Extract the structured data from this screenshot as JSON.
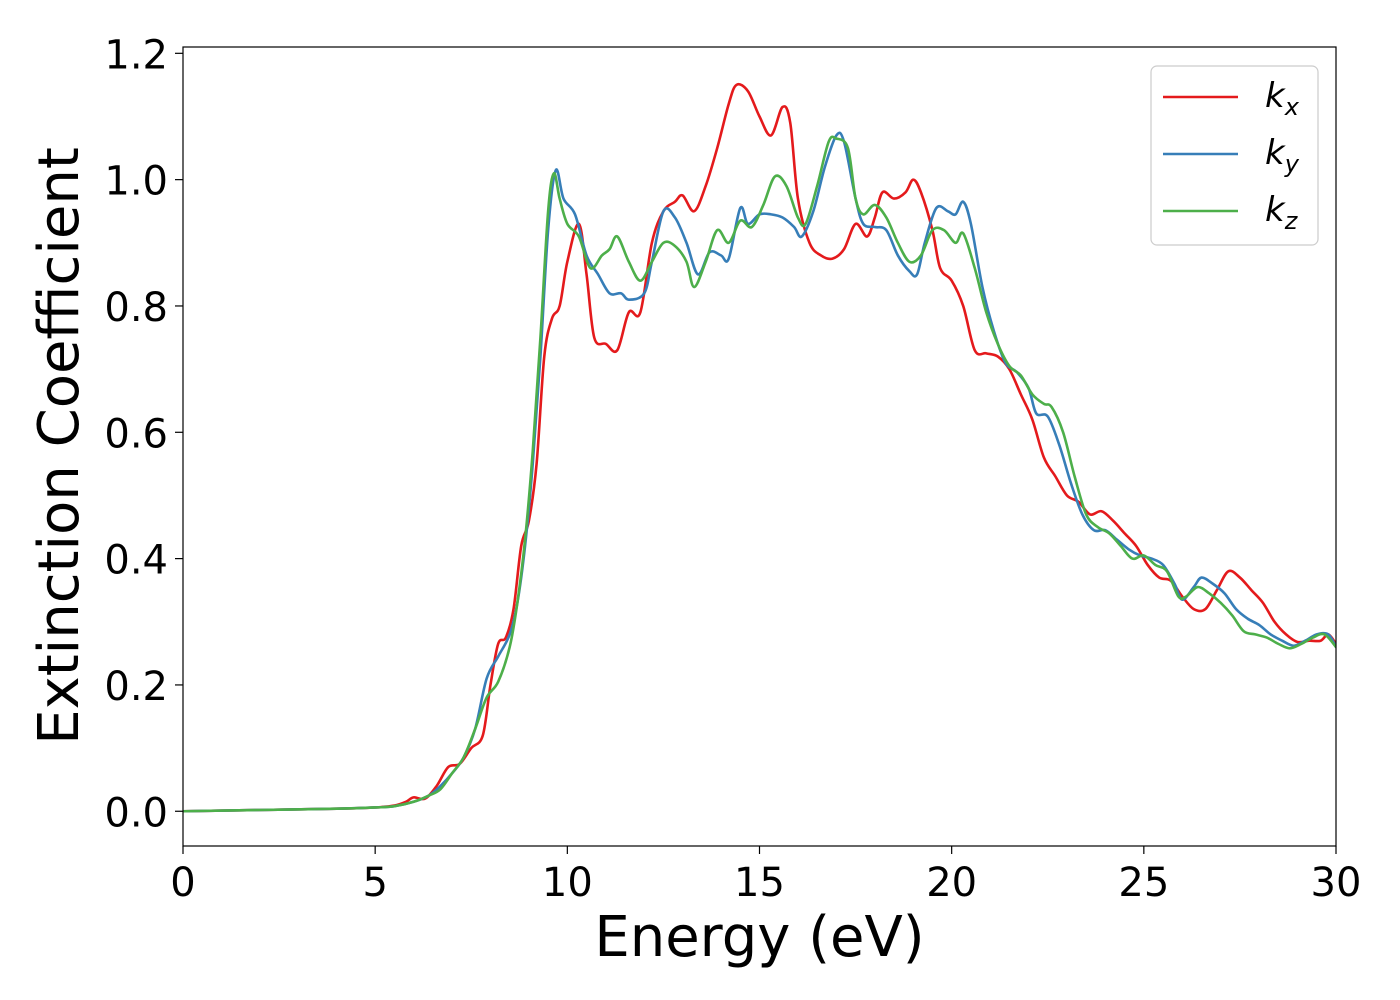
{
  "chart_data": {
    "type": "line",
    "title": "",
    "xlabel": "Energy (eV)",
    "ylabel": "Extinction Coefficient",
    "xlim": [
      0,
      30
    ],
    "ylim": [
      -0.055,
      1.21
    ],
    "xticks": [
      0,
      5,
      10,
      15,
      20,
      25,
      30
    ],
    "xtick_labels": [
      "0",
      "5",
      "10",
      "15",
      "20",
      "25",
      "30"
    ],
    "yticks": [
      0.0,
      0.2,
      0.4,
      0.6,
      0.8,
      1.0,
      1.2
    ],
    "ytick_labels": [
      "0.0",
      "0.2",
      "0.4",
      "0.6",
      "0.8",
      "1.0",
      "1.2"
    ],
    "grid": false,
    "legend_position": "top-right",
    "series": [
      {
        "name": "k_x",
        "legend_base": "k",
        "legend_sub": "x",
        "color": "#e41a1c",
        "points": [
          [
            0,
            0.0
          ],
          [
            2,
            0.002
          ],
          [
            4,
            0.004
          ],
          [
            5,
            0.006
          ],
          [
            5.5,
            0.009
          ],
          [
            5.8,
            0.015
          ],
          [
            6.0,
            0.022
          ],
          [
            6.3,
            0.02
          ],
          [
            6.6,
            0.04
          ],
          [
            6.9,
            0.07
          ],
          [
            7.2,
            0.075
          ],
          [
            7.5,
            0.1
          ],
          [
            7.8,
            0.12
          ],
          [
            8.0,
            0.2
          ],
          [
            8.2,
            0.265
          ],
          [
            8.4,
            0.275
          ],
          [
            8.6,
            0.32
          ],
          [
            8.8,
            0.42
          ],
          [
            9.0,
            0.46
          ],
          [
            9.2,
            0.55
          ],
          [
            9.4,
            0.72
          ],
          [
            9.6,
            0.78
          ],
          [
            9.8,
            0.8
          ],
          [
            10.0,
            0.87
          ],
          [
            10.3,
            0.93
          ],
          [
            10.5,
            0.85
          ],
          [
            10.7,
            0.75
          ],
          [
            11.0,
            0.74
          ],
          [
            11.3,
            0.73
          ],
          [
            11.6,
            0.79
          ],
          [
            11.9,
            0.79
          ],
          [
            12.2,
            0.9
          ],
          [
            12.5,
            0.95
          ],
          [
            12.8,
            0.965
          ],
          [
            13.0,
            0.975
          ],
          [
            13.3,
            0.95
          ],
          [
            13.6,
            0.99
          ],
          [
            13.9,
            1.05
          ],
          [
            14.2,
            1.12
          ],
          [
            14.4,
            1.15
          ],
          [
            14.7,
            1.14
          ],
          [
            15.0,
            1.1
          ],
          [
            15.3,
            1.07
          ],
          [
            15.6,
            1.115
          ],
          [
            15.8,
            1.09
          ],
          [
            16.0,
            0.97
          ],
          [
            16.3,
            0.9
          ],
          [
            16.6,
            0.88
          ],
          [
            16.9,
            0.875
          ],
          [
            17.2,
            0.89
          ],
          [
            17.5,
            0.93
          ],
          [
            17.8,
            0.91
          ],
          [
            18.0,
            0.94
          ],
          [
            18.2,
            0.98
          ],
          [
            18.5,
            0.97
          ],
          [
            18.8,
            0.98
          ],
          [
            19.0,
            1.0
          ],
          [
            19.2,
            0.98
          ],
          [
            19.5,
            0.92
          ],
          [
            19.7,
            0.86
          ],
          [
            20.0,
            0.84
          ],
          [
            20.3,
            0.8
          ],
          [
            20.6,
            0.73
          ],
          [
            20.9,
            0.725
          ],
          [
            21.2,
            0.72
          ],
          [
            21.5,
            0.7
          ],
          [
            21.8,
            0.66
          ],
          [
            22.1,
            0.62
          ],
          [
            22.4,
            0.56
          ],
          [
            22.7,
            0.53
          ],
          [
            23.0,
            0.5
          ],
          [
            23.3,
            0.49
          ],
          [
            23.6,
            0.47
          ],
          [
            23.9,
            0.475
          ],
          [
            24.2,
            0.46
          ],
          [
            24.5,
            0.44
          ],
          [
            24.8,
            0.42
          ],
          [
            25.1,
            0.39
          ],
          [
            25.4,
            0.37
          ],
          [
            25.7,
            0.365
          ],
          [
            26.0,
            0.34
          ],
          [
            26.3,
            0.32
          ],
          [
            26.6,
            0.32
          ],
          [
            26.9,
            0.35
          ],
          [
            27.2,
            0.38
          ],
          [
            27.5,
            0.37
          ],
          [
            27.8,
            0.35
          ],
          [
            28.1,
            0.33
          ],
          [
            28.4,
            0.3
          ],
          [
            28.7,
            0.28
          ],
          [
            29.0,
            0.268
          ],
          [
            29.3,
            0.27
          ],
          [
            29.6,
            0.27
          ],
          [
            29.8,
            0.28
          ],
          [
            30.0,
            0.265
          ]
        ]
      },
      {
        "name": "k_y",
        "legend_base": "k",
        "legend_sub": "y",
        "color": "#377eb8",
        "points": [
          [
            0,
            0.0
          ],
          [
            2,
            0.002
          ],
          [
            4,
            0.004
          ],
          [
            5,
            0.006
          ],
          [
            5.5,
            0.008
          ],
          [
            6.0,
            0.015
          ],
          [
            6.4,
            0.025
          ],
          [
            6.7,
            0.04
          ],
          [
            7.0,
            0.06
          ],
          [
            7.3,
            0.085
          ],
          [
            7.6,
            0.13
          ],
          [
            7.9,
            0.21
          ],
          [
            8.2,
            0.245
          ],
          [
            8.5,
            0.28
          ],
          [
            8.7,
            0.33
          ],
          [
            8.9,
            0.42
          ],
          [
            9.1,
            0.55
          ],
          [
            9.3,
            0.72
          ],
          [
            9.5,
            0.92
          ],
          [
            9.7,
            1.015
          ],
          [
            9.9,
            0.97
          ],
          [
            10.2,
            0.945
          ],
          [
            10.5,
            0.88
          ],
          [
            10.8,
            0.85
          ],
          [
            11.1,
            0.82
          ],
          [
            11.4,
            0.82
          ],
          [
            11.6,
            0.81
          ],
          [
            12.0,
            0.82
          ],
          [
            12.2,
            0.87
          ],
          [
            12.5,
            0.95
          ],
          [
            12.8,
            0.94
          ],
          [
            13.1,
            0.9
          ],
          [
            13.4,
            0.85
          ],
          [
            13.7,
            0.885
          ],
          [
            14.0,
            0.88
          ],
          [
            14.2,
            0.875
          ],
          [
            14.5,
            0.955
          ],
          [
            14.7,
            0.93
          ],
          [
            15.0,
            0.945
          ],
          [
            15.3,
            0.945
          ],
          [
            15.6,
            0.94
          ],
          [
            15.9,
            0.925
          ],
          [
            16.1,
            0.91
          ],
          [
            16.4,
            0.95
          ],
          [
            16.7,
            1.02
          ],
          [
            17.0,
            1.07
          ],
          [
            17.2,
            1.06
          ],
          [
            17.5,
            0.97
          ],
          [
            17.7,
            0.93
          ],
          [
            18.0,
            0.925
          ],
          [
            18.3,
            0.92
          ],
          [
            18.6,
            0.88
          ],
          [
            18.9,
            0.855
          ],
          [
            19.1,
            0.85
          ],
          [
            19.3,
            0.9
          ],
          [
            19.6,
            0.955
          ],
          [
            19.9,
            0.95
          ],
          [
            20.1,
            0.945
          ],
          [
            20.3,
            0.965
          ],
          [
            20.5,
            0.93
          ],
          [
            20.8,
            0.83
          ],
          [
            21.1,
            0.76
          ],
          [
            21.4,
            0.71
          ],
          [
            21.7,
            0.695
          ],
          [
            22.0,
            0.67
          ],
          [
            22.2,
            0.63
          ],
          [
            22.5,
            0.625
          ],
          [
            22.8,
            0.58
          ],
          [
            23.1,
            0.52
          ],
          [
            23.4,
            0.47
          ],
          [
            23.7,
            0.445
          ],
          [
            24.0,
            0.445
          ],
          [
            24.3,
            0.43
          ],
          [
            24.6,
            0.415
          ],
          [
            24.9,
            0.405
          ],
          [
            25.2,
            0.4
          ],
          [
            25.5,
            0.39
          ],
          [
            25.8,
            0.36
          ],
          [
            26.0,
            0.335
          ],
          [
            26.3,
            0.355
          ],
          [
            26.5,
            0.37
          ],
          [
            26.8,
            0.36
          ],
          [
            27.1,
            0.345
          ],
          [
            27.4,
            0.32
          ],
          [
            27.7,
            0.305
          ],
          [
            28.0,
            0.295
          ],
          [
            28.3,
            0.28
          ],
          [
            28.6,
            0.27
          ],
          [
            28.9,
            0.262
          ],
          [
            29.2,
            0.27
          ],
          [
            29.5,
            0.28
          ],
          [
            29.8,
            0.28
          ],
          [
            30.0,
            0.26
          ]
        ]
      },
      {
        "name": "k_z",
        "legend_base": "k",
        "legend_sub": "z",
        "color": "#4daf4a",
        "points": [
          [
            0,
            0.0
          ],
          [
            2,
            0.002
          ],
          [
            4,
            0.004
          ],
          [
            5,
            0.006
          ],
          [
            5.5,
            0.008
          ],
          [
            6.0,
            0.015
          ],
          [
            6.4,
            0.025
          ],
          [
            6.7,
            0.035
          ],
          [
            7.0,
            0.06
          ],
          [
            7.3,
            0.085
          ],
          [
            7.6,
            0.13
          ],
          [
            7.9,
            0.18
          ],
          [
            8.2,
            0.205
          ],
          [
            8.5,
            0.26
          ],
          [
            8.7,
            0.33
          ],
          [
            8.9,
            0.43
          ],
          [
            9.1,
            0.57
          ],
          [
            9.3,
            0.75
          ],
          [
            9.5,
            0.95
          ],
          [
            9.65,
            1.01
          ],
          [
            9.8,
            0.97
          ],
          [
            10.0,
            0.93
          ],
          [
            10.3,
            0.91
          ],
          [
            10.6,
            0.86
          ],
          [
            10.9,
            0.88
          ],
          [
            11.1,
            0.89
          ],
          [
            11.3,
            0.91
          ],
          [
            11.6,
            0.87
          ],
          [
            11.9,
            0.84
          ],
          [
            12.2,
            0.87
          ],
          [
            12.5,
            0.9
          ],
          [
            12.8,
            0.895
          ],
          [
            13.1,
            0.87
          ],
          [
            13.3,
            0.83
          ],
          [
            13.6,
            0.87
          ],
          [
            13.9,
            0.92
          ],
          [
            14.2,
            0.9
          ],
          [
            14.5,
            0.935
          ],
          [
            14.8,
            0.925
          ],
          [
            15.1,
            0.96
          ],
          [
            15.4,
            1.005
          ],
          [
            15.7,
            0.99
          ],
          [
            16.0,
            0.94
          ],
          [
            16.2,
            0.93
          ],
          [
            16.5,
            0.99
          ],
          [
            16.8,
            1.06
          ],
          [
            17.0,
            1.065
          ],
          [
            17.3,
            1.05
          ],
          [
            17.5,
            0.97
          ],
          [
            17.7,
            0.945
          ],
          [
            18.0,
            0.96
          ],
          [
            18.3,
            0.94
          ],
          [
            18.6,
            0.9
          ],
          [
            18.9,
            0.87
          ],
          [
            19.2,
            0.88
          ],
          [
            19.5,
            0.92
          ],
          [
            19.8,
            0.92
          ],
          [
            20.1,
            0.9
          ],
          [
            20.3,
            0.915
          ],
          [
            20.6,
            0.86
          ],
          [
            20.9,
            0.79
          ],
          [
            21.2,
            0.74
          ],
          [
            21.5,
            0.705
          ],
          [
            21.8,
            0.69
          ],
          [
            22.1,
            0.66
          ],
          [
            22.4,
            0.645
          ],
          [
            22.6,
            0.64
          ],
          [
            22.9,
            0.6
          ],
          [
            23.2,
            0.53
          ],
          [
            23.5,
            0.47
          ],
          [
            23.8,
            0.45
          ],
          [
            24.1,
            0.44
          ],
          [
            24.4,
            0.42
          ],
          [
            24.7,
            0.4
          ],
          [
            25.0,
            0.405
          ],
          [
            25.3,
            0.39
          ],
          [
            25.6,
            0.38
          ],
          [
            25.9,
            0.34
          ],
          [
            26.1,
            0.34
          ],
          [
            26.4,
            0.355
          ],
          [
            26.7,
            0.345
          ],
          [
            27.0,
            0.33
          ],
          [
            27.3,
            0.31
          ],
          [
            27.6,
            0.285
          ],
          [
            27.9,
            0.28
          ],
          [
            28.2,
            0.275
          ],
          [
            28.5,
            0.265
          ],
          [
            28.8,
            0.258
          ],
          [
            29.1,
            0.265
          ],
          [
            29.4,
            0.275
          ],
          [
            29.7,
            0.28
          ],
          [
            30.0,
            0.26
          ]
        ]
      }
    ]
  }
}
